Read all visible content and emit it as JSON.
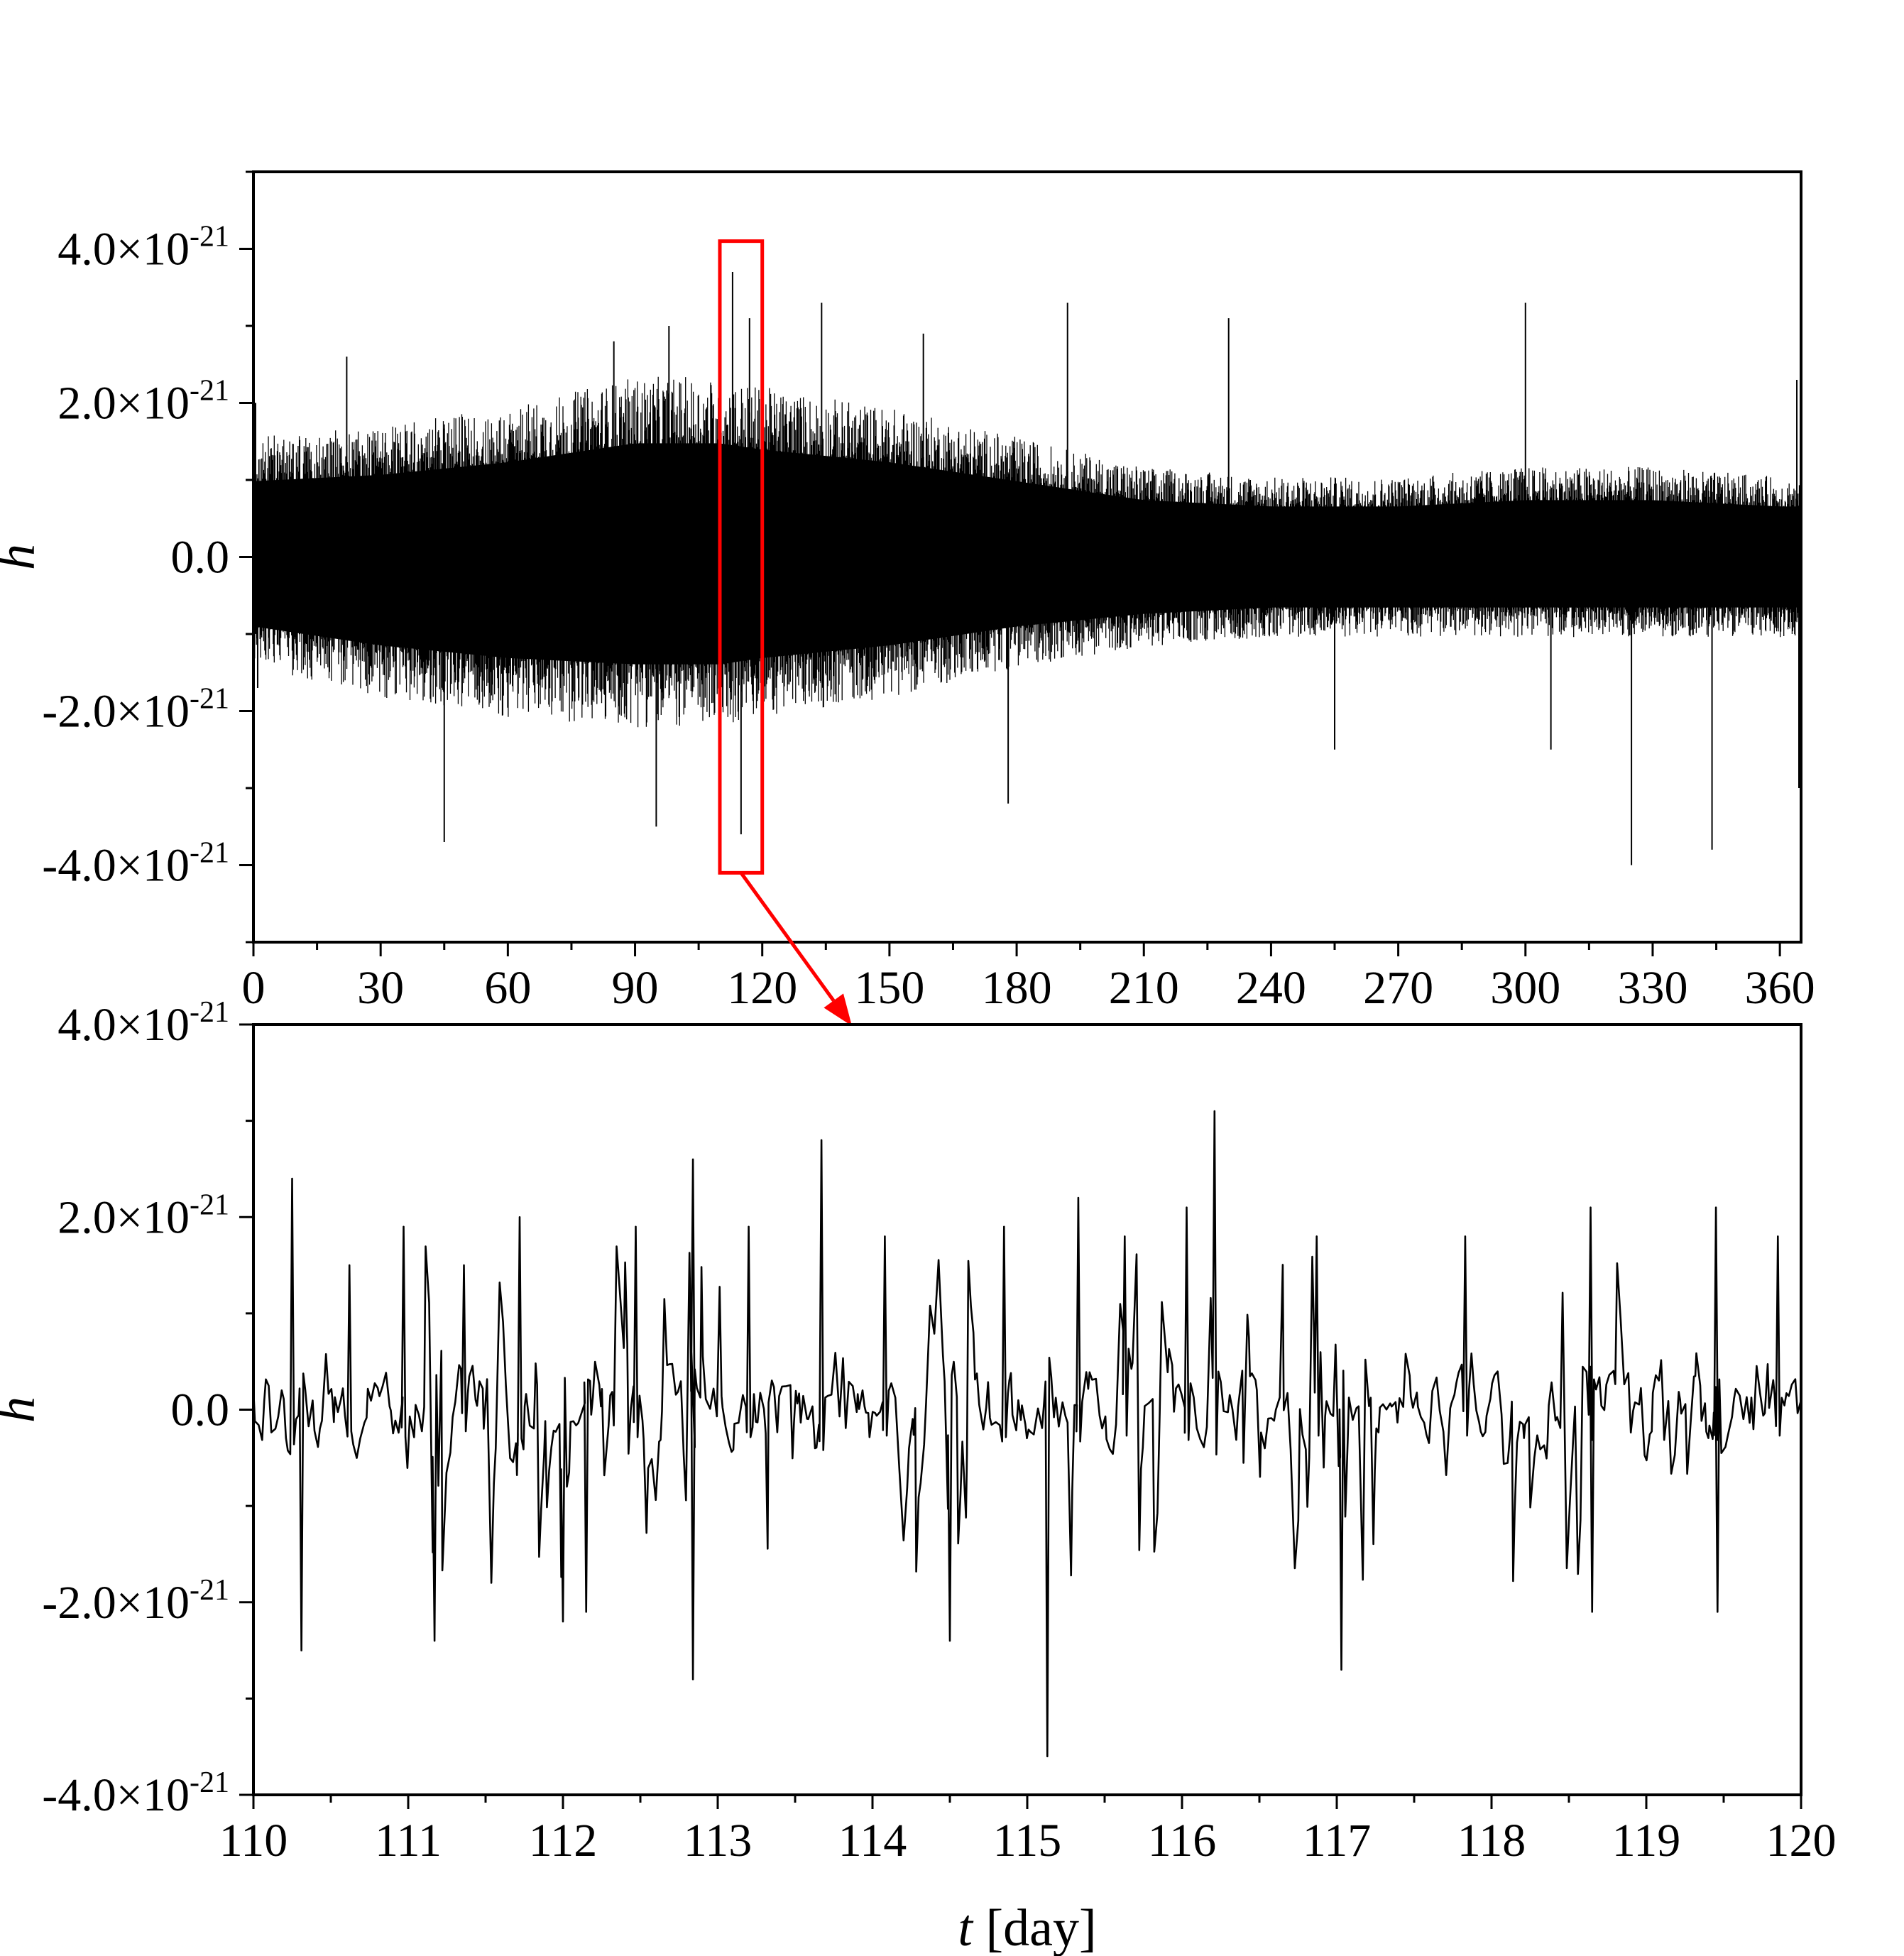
{
  "colors": {
    "signal": "#000000",
    "frame": "#000000",
    "highlight": "#ff0000"
  },
  "chart_data": [
    {
      "type": "line",
      "panel": "full-year",
      "title": "",
      "xlabel": "",
      "ylabel": "h",
      "xlim": [
        0,
        365
      ],
      "ylim": [
        -5e-21,
        5e-21
      ],
      "x_ticks": [
        "0",
        "30",
        "60",
        "90",
        "120",
        "150",
        "180",
        "210",
        "240",
        "270",
        "300",
        "330",
        "360"
      ],
      "y_ticks": [
        {
          "base": "4.0×10",
          "exp": "-21",
          "value": 4e-21
        },
        {
          "base": "2.0×10",
          "exp": "-21",
          "value": 2e-21
        },
        {
          "base": "0.0",
          "exp": "",
          "value": 0
        },
        {
          "base": "-2.0×10",
          "exp": "-21",
          "value": -2e-21
        },
        {
          "base": "-4.0×10",
          "exp": "-21",
          "value": -4e-21
        }
      ],
      "envelope": {
        "x": [
          0,
          30,
          60,
          90,
          110,
          120,
          150,
          180,
          210,
          240,
          270,
          300,
          330,
          360,
          365
        ],
        "upper": [
          1.2e-21,
          1.3e-21,
          1.5e-21,
          1.8e-21,
          1.8e-21,
          1.7e-21,
          1.5e-21,
          1.2e-21,
          9e-22,
          8e-22,
          8e-22,
          9e-22,
          9e-22,
          8e-22,
          8e-22
        ],
        "lower": [
          -1.1e-21,
          -1.4e-21,
          -1.6e-21,
          -1.7e-21,
          -1.7e-21,
          -1.6e-21,
          -1.4e-21,
          -1.1e-21,
          -9e-22,
          -8e-22,
          -8e-22,
          -8e-22,
          -8e-22,
          -8e-22,
          -8e-22
        ]
      },
      "spikes": [
        {
          "x": 0.5,
          "y": 2e-21
        },
        {
          "x": 1,
          "y": -1.7e-21
        },
        {
          "x": 22,
          "y": 2.6e-21
        },
        {
          "x": 45,
          "y": -3.7e-21
        },
        {
          "x": 85,
          "y": 2.8e-21
        },
        {
          "x": 95,
          "y": -3.5e-21
        },
        {
          "x": 98,
          "y": 3e-21
        },
        {
          "x": 113,
          "y": 3.7e-21
        },
        {
          "x": 115,
          "y": -3.6e-21
        },
        {
          "x": 117,
          "y": 3.1e-21
        },
        {
          "x": 134,
          "y": 3.3e-21
        },
        {
          "x": 158,
          "y": 2.9e-21
        },
        {
          "x": 178,
          "y": -3.2e-21
        },
        {
          "x": 192,
          "y": 3.3e-21
        },
        {
          "x": 230,
          "y": 3.1e-21
        },
        {
          "x": 255,
          "y": -2.5e-21
        },
        {
          "x": 300,
          "y": 3.3e-21
        },
        {
          "x": 306,
          "y": -2.5e-21
        },
        {
          "x": 325,
          "y": -4e-21
        },
        {
          "x": 344,
          "y": -3.8e-21
        },
        {
          "x": 364,
          "y": 2.3e-21
        },
        {
          "x": 364.5,
          "y": -3e-21
        }
      ],
      "zoom_box": {
        "x": [
          110,
          120
        ],
        "y": [
          -4.1e-21,
          4.1e-21
        ]
      }
    },
    {
      "type": "line",
      "panel": "zoom",
      "title": "",
      "xlabel": "t [day]",
      "ylabel": "h",
      "xlim": [
        110,
        120
      ],
      "ylim": [
        -4e-21,
        4e-21
      ],
      "x_ticks": [
        "110",
        "111",
        "112",
        "113",
        "114",
        "115",
        "116",
        "117",
        "118",
        "119",
        "120"
      ],
      "y_ticks": [
        {
          "base": "4.0×10",
          "exp": "-21",
          "value": 4e-21
        },
        {
          "base": "2.0×10",
          "exp": "-21",
          "value": 2e-21
        },
        {
          "base": "0.0",
          "exp": "",
          "value": 0
        },
        {
          "base": "-2.0×10",
          "exp": "-21",
          "value": -2e-21
        },
        {
          "base": "-4.0×10",
          "exp": "-21",
          "value": -4e-21
        }
      ],
      "peaks": [
        {
          "x": 110.25,
          "y": 2.4e-21
        },
        {
          "x": 110.31,
          "y": -2.5e-21
        },
        {
          "x": 110.62,
          "y": 1.5e-21
        },
        {
          "x": 110.97,
          "y": 1.9e-21
        },
        {
          "x": 111.17,
          "y": -2.4e-21
        },
        {
          "x": 111.36,
          "y": 1.5e-21
        },
        {
          "x": 111.72,
          "y": 2e-21
        },
        {
          "x": 112.0,
          "y": -2.2e-21
        },
        {
          "x": 112.15,
          "y": -2.1e-21
        },
        {
          "x": 112.47,
          "y": 1.9e-21
        },
        {
          "x": 112.84,
          "y": 2.6e-21
        },
        {
          "x": 112.84,
          "y": -2.8e-21
        },
        {
          "x": 113.2,
          "y": 1.9e-21
        },
        {
          "x": 113.67,
          "y": 2.8e-21
        },
        {
          "x": 114.08,
          "y": 1.8e-21
        },
        {
          "x": 114.5,
          "y": -2.4e-21
        },
        {
          "x": 114.85,
          "y": 1.9e-21
        },
        {
          "x": 115.13,
          "y": -3.6e-21
        },
        {
          "x": 115.33,
          "y": 2.2e-21
        },
        {
          "x": 115.63,
          "y": 1.8e-21
        },
        {
          "x": 116.03,
          "y": 2.1e-21
        },
        {
          "x": 116.21,
          "y": 3.1e-21
        },
        {
          "x": 116.87,
          "y": 1.8e-21
        },
        {
          "x": 117.03,
          "y": -2.7e-21
        },
        {
          "x": 117.83,
          "y": 1.8e-21
        },
        {
          "x": 118.64,
          "y": 2.1e-21
        },
        {
          "x": 118.65,
          "y": -2.1e-21
        },
        {
          "x": 119.45,
          "y": 2.1e-21
        },
        {
          "x": 119.46,
          "y": -2.1e-21
        },
        {
          "x": 119.85,
          "y": 1.8e-21
        }
      ]
    }
  ]
}
